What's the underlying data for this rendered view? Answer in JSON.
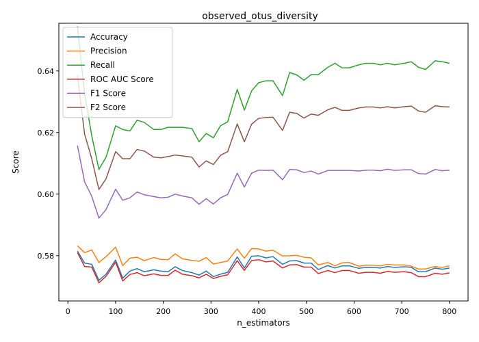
{
  "chart_data": {
    "type": "line",
    "title": "observed_otus_diversity",
    "xlabel": "n_estimators",
    "ylabel": "Score",
    "xlim": [
      -19,
      839
    ],
    "ylim": [
      0.5653,
      0.6555
    ],
    "x_ticks": [
      0,
      100,
      200,
      300,
      400,
      500,
      600,
      700,
      800
    ],
    "y_ticks": [
      0.58,
      0.6,
      0.62,
      0.64
    ],
    "y_tick_labels": [
      "0.58",
      "0.60",
      "0.62",
      "0.64"
    ],
    "grid": false,
    "legend_position": "top-left",
    "x": [
      20,
      35,
      50,
      65,
      80,
      100,
      115,
      130,
      145,
      160,
      180,
      195,
      210,
      225,
      240,
      260,
      275,
      290,
      305,
      320,
      335,
      355,
      370,
      385,
      400,
      415,
      430,
      450,
      465,
      480,
      495,
      510,
      525,
      545,
      560,
      575,
      590,
      610,
      625,
      640,
      655,
      670,
      685,
      705,
      720,
      735,
      750,
      770,
      785,
      800
    ],
    "series": [
      {
        "name": "Accuracy",
        "color": "#1f77b4",
        "values": [
          0.5815,
          0.5776,
          0.5772,
          0.572,
          0.574,
          0.5786,
          0.5727,
          0.575,
          0.5758,
          0.5748,
          0.5754,
          0.575,
          0.5748,
          0.5764,
          0.5752,
          0.5745,
          0.5737,
          0.575,
          0.5732,
          0.574,
          0.5746,
          0.5796,
          0.576,
          0.5798,
          0.58,
          0.5793,
          0.5797,
          0.5772,
          0.5783,
          0.5784,
          0.5776,
          0.5776,
          0.5755,
          0.5768,
          0.576,
          0.5767,
          0.5767,
          0.5759,
          0.5762,
          0.5762,
          0.576,
          0.5765,
          0.5762,
          0.5764,
          0.5762,
          0.5748,
          0.5748,
          0.576,
          0.5756,
          0.576
        ]
      },
      {
        "name": "Precision",
        "color": "#ff7f0e",
        "values": [
          0.5832,
          0.581,
          0.5819,
          0.5778,
          0.5797,
          0.5828,
          0.5768,
          0.5792,
          0.5795,
          0.5784,
          0.5794,
          0.5788,
          0.5787,
          0.5806,
          0.579,
          0.5785,
          0.5782,
          0.5794,
          0.5773,
          0.5778,
          0.5783,
          0.5822,
          0.5792,
          0.5823,
          0.5822,
          0.5815,
          0.5818,
          0.5799,
          0.58,
          0.5801,
          0.5795,
          0.5793,
          0.577,
          0.5778,
          0.5767,
          0.5777,
          0.5778,
          0.5766,
          0.5769,
          0.5769,
          0.5767,
          0.5772,
          0.577,
          0.577,
          0.5766,
          0.5757,
          0.5757,
          0.5765,
          0.5762,
          0.5767
        ]
      },
      {
        "name": "Recall",
        "color": "#2ca02c",
        "values": [
          0.6545,
          0.6325,
          0.619,
          0.608,
          0.612,
          0.6222,
          0.621,
          0.6205,
          0.624,
          0.6233,
          0.621,
          0.621,
          0.6217,
          0.6217,
          0.6217,
          0.6213,
          0.617,
          0.6197,
          0.6183,
          0.6222,
          0.6235,
          0.634,
          0.6273,
          0.6335,
          0.6362,
          0.6368,
          0.6368,
          0.632,
          0.6395,
          0.6387,
          0.637,
          0.6388,
          0.6388,
          0.6412,
          0.6425,
          0.641,
          0.641,
          0.642,
          0.6425,
          0.6425,
          0.642,
          0.6425,
          0.642,
          0.6425,
          0.643,
          0.6412,
          0.6405,
          0.6433,
          0.643,
          0.6425
        ]
      },
      {
        "name": "ROC AUC Score",
        "color": "#d62728",
        "values": [
          0.581,
          0.5765,
          0.5763,
          0.5712,
          0.5733,
          0.5779,
          0.5718,
          0.5739,
          0.5745,
          0.5735,
          0.5741,
          0.5736,
          0.5736,
          0.5753,
          0.574,
          0.5735,
          0.5728,
          0.574,
          0.5726,
          0.5733,
          0.5738,
          0.5784,
          0.5752,
          0.5784,
          0.5787,
          0.578,
          0.5783,
          0.576,
          0.577,
          0.5771,
          0.5763,
          0.5763,
          0.5742,
          0.5752,
          0.5745,
          0.5752,
          0.5752,
          0.5743,
          0.5746,
          0.5746,
          0.5743,
          0.5749,
          0.5746,
          0.5748,
          0.5745,
          0.5732,
          0.5732,
          0.5743,
          0.574,
          0.5744
        ]
      },
      {
        "name": "F1 Score",
        "color": "#9467bd",
        "values": [
          0.6158,
          0.604,
          0.5993,
          0.5922,
          0.595,
          0.6016,
          0.598,
          0.5988,
          0.6007,
          0.5998,
          0.5992,
          0.5988,
          0.599,
          0.6,
          0.5994,
          0.5988,
          0.5967,
          0.5985,
          0.5968,
          0.5988,
          0.5999,
          0.6068,
          0.6023,
          0.6068,
          0.6078,
          0.6077,
          0.6078,
          0.6047,
          0.608,
          0.6079,
          0.607,
          0.6075,
          0.6065,
          0.6077,
          0.6077,
          0.6077,
          0.6077,
          0.6075,
          0.6078,
          0.6078,
          0.6076,
          0.6081,
          0.6077,
          0.6079,
          0.6079,
          0.6067,
          0.6065,
          0.608,
          0.6076,
          0.6078
        ]
      },
      {
        "name": "F2 Score",
        "color": "#8c564b",
        "values": [
          0.6385,
          0.6195,
          0.6115,
          0.6015,
          0.605,
          0.6138,
          0.6115,
          0.6115,
          0.6145,
          0.614,
          0.612,
          0.6118,
          0.6122,
          0.6127,
          0.6124,
          0.612,
          0.6088,
          0.6108,
          0.6096,
          0.6126,
          0.6138,
          0.6228,
          0.617,
          0.6227,
          0.6246,
          0.6249,
          0.625,
          0.6207,
          0.6266,
          0.6262,
          0.6247,
          0.626,
          0.6256,
          0.6274,
          0.6282,
          0.6272,
          0.6272,
          0.628,
          0.6283,
          0.6283,
          0.628,
          0.6284,
          0.628,
          0.6284,
          0.6286,
          0.627,
          0.6266,
          0.6287,
          0.6284,
          0.6283
        ]
      }
    ]
  }
}
